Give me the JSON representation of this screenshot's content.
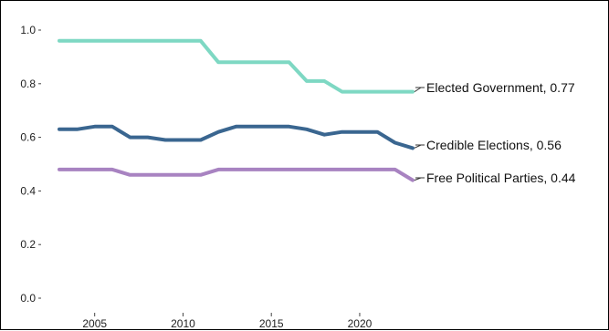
{
  "chart_data": {
    "type": "line",
    "title": "",
    "xlabel": "",
    "ylabel": "",
    "x": [
      2003,
      2004,
      2005,
      2006,
      2007,
      2008,
      2009,
      2010,
      2011,
      2012,
      2013,
      2014,
      2015,
      2016,
      2017,
      2018,
      2019,
      2020,
      2021,
      2022,
      2023
    ],
    "series": [
      {
        "color": "#7ed8c3",
        "label": "Elected Government, 0.77",
        "values": [
          0.96,
          0.96,
          0.96,
          0.96,
          0.96,
          0.96,
          0.96,
          0.96,
          0.96,
          0.88,
          0.88,
          0.88,
          0.88,
          0.88,
          0.81,
          0.81,
          0.77,
          0.77,
          0.77,
          0.77,
          0.77
        ]
      },
      {
        "color": "#3a6690",
        "label": "Credible Elections, 0.56",
        "values": [
          0.63,
          0.63,
          0.64,
          0.64,
          0.6,
          0.6,
          0.59,
          0.59,
          0.59,
          0.62,
          0.64,
          0.64,
          0.64,
          0.64,
          0.63,
          0.61,
          0.62,
          0.62,
          0.62,
          0.58,
          0.56
        ]
      },
      {
        "color": "#a883c1",
        "label": "Free Political Parties, 0.44",
        "values": [
          0.48,
          0.48,
          0.48,
          0.48,
          0.46,
          0.46,
          0.46,
          0.46,
          0.46,
          0.48,
          0.48,
          0.48,
          0.48,
          0.48,
          0.48,
          0.48,
          0.48,
          0.48,
          0.48,
          0.48,
          0.44
        ]
      }
    ],
    "ylim": [
      0,
      1
    ],
    "yticks": [
      "0.0",
      "0.2",
      "0.4",
      "0.6",
      "0.8",
      "1.0"
    ],
    "xticks": [
      "2005",
      "2010",
      "2015",
      "2020"
    ],
    "grid": false,
    "legend": "none"
  }
}
